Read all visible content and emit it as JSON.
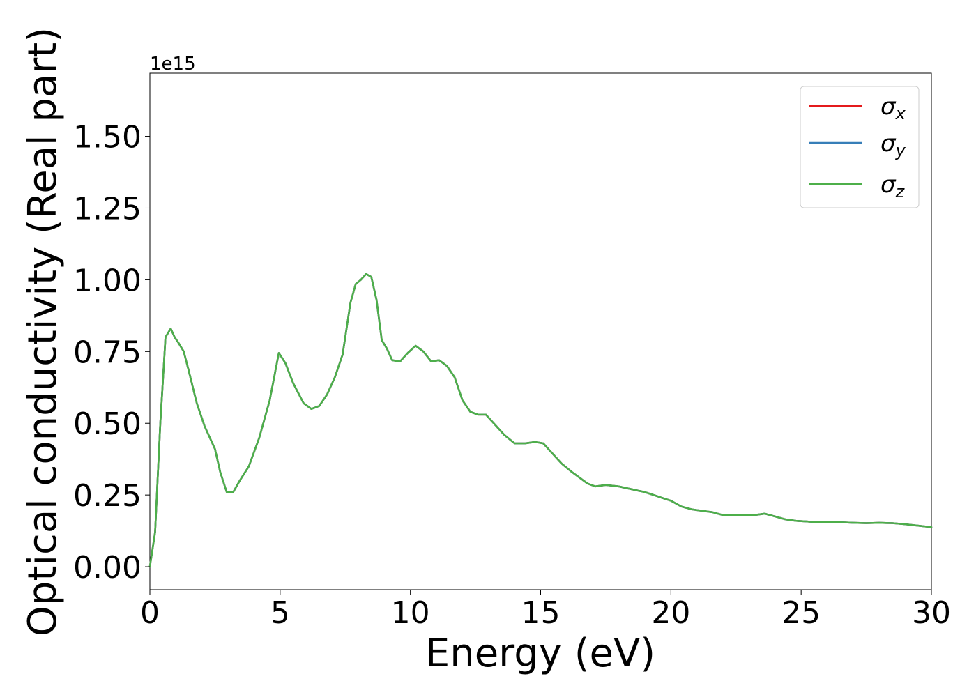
{
  "chart_data": {
    "type": "line",
    "xlabel": "Energy (eV)",
    "ylabel": "Optical conductivity (Real part)",
    "offset_text": "1e15",
    "y_scale_factor": 1000000000000000.0,
    "xlim": [
      0,
      30
    ],
    "ylim": [
      -0.08,
      1.72
    ],
    "xticks": [
      0,
      5,
      10,
      15,
      20,
      25,
      30
    ],
    "xtick_labels": [
      "0",
      "5",
      "10",
      "15",
      "20",
      "25",
      "30"
    ],
    "yticks": [
      0.0,
      0.25,
      0.5,
      0.75,
      1.0,
      1.25,
      1.5
    ],
    "ytick_labels": [
      "0.00",
      "0.25",
      "0.50",
      "0.75",
      "1.00",
      "1.25",
      "1.50"
    ],
    "grid": false,
    "legend_position": "top-right",
    "x": [
      0,
      0.2,
      0.4,
      0.6,
      0.8,
      0.95,
      1.1,
      1.3,
      1.5,
      1.8,
      2.1,
      2.5,
      2.7,
      2.95,
      3.2,
      3.45,
      3.8,
      4.2,
      4.6,
      4.95,
      5.2,
      5.5,
      5.9,
      6.2,
      6.5,
      6.8,
      7.1,
      7.4,
      7.7,
      7.9,
      8.1,
      8.3,
      8.5,
      8.7,
      8.9,
      9.1,
      9.3,
      9.6,
      9.9,
      10.2,
      10.5,
      10.8,
      11.1,
      11.4,
      11.7,
      12.0,
      12.3,
      12.6,
      12.9,
      13.2,
      13.6,
      14.0,
      14.4,
      14.8,
      15.1,
      15.4,
      15.8,
      16.2,
      16.5,
      16.8,
      17.1,
      17.5,
      18.0,
      18.5,
      19.0,
      19.5,
      20.0,
      20.4,
      20.8,
      21.2,
      21.6,
      22.0,
      22.4,
      22.8,
      23.2,
      23.6,
      24.0,
      24.4,
      24.8,
      25.2,
      25.6,
      26.0,
      26.5,
      27.0,
      27.5,
      28.0,
      28.5,
      29.0,
      29.5,
      30.0
    ],
    "series": [
      {
        "name": "σx",
        "color": "#e41a1c",
        "values": [
          0.0,
          0.12,
          0.5,
          0.8,
          0.83,
          0.8,
          0.78,
          0.75,
          0.68,
          0.57,
          0.49,
          0.41,
          0.33,
          0.26,
          0.26,
          0.3,
          0.35,
          0.45,
          0.58,
          0.745,
          0.71,
          0.64,
          0.57,
          0.55,
          0.56,
          0.6,
          0.66,
          0.74,
          0.92,
          0.985,
          1.0,
          1.02,
          1.01,
          0.93,
          0.79,
          0.76,
          0.72,
          0.715,
          0.745,
          0.77,
          0.75,
          0.715,
          0.72,
          0.7,
          0.66,
          0.58,
          0.54,
          0.53,
          0.53,
          0.5,
          0.46,
          0.43,
          0.43,
          0.435,
          0.43,
          0.4,
          0.36,
          0.33,
          0.31,
          0.29,
          0.28,
          0.285,
          0.28,
          0.27,
          0.26,
          0.245,
          0.23,
          0.21,
          0.2,
          0.195,
          0.19,
          0.18,
          0.18,
          0.18,
          0.18,
          0.185,
          0.175,
          0.165,
          0.16,
          0.158,
          0.155,
          0.155,
          0.155,
          0.153,
          0.152,
          0.153,
          0.152,
          0.148,
          0.143,
          0.138
        ]
      },
      {
        "name": "σy",
        "color": "#377eb8",
        "values": [
          0.0,
          0.12,
          0.5,
          0.8,
          0.83,
          0.8,
          0.78,
          0.75,
          0.68,
          0.57,
          0.49,
          0.41,
          0.33,
          0.26,
          0.26,
          0.3,
          0.35,
          0.45,
          0.58,
          0.745,
          0.71,
          0.64,
          0.57,
          0.55,
          0.56,
          0.6,
          0.66,
          0.74,
          0.92,
          0.985,
          1.0,
          1.02,
          1.01,
          0.93,
          0.79,
          0.76,
          0.72,
          0.715,
          0.745,
          0.77,
          0.75,
          0.715,
          0.72,
          0.7,
          0.66,
          0.58,
          0.54,
          0.53,
          0.53,
          0.5,
          0.46,
          0.43,
          0.43,
          0.435,
          0.43,
          0.4,
          0.36,
          0.33,
          0.31,
          0.29,
          0.28,
          0.285,
          0.28,
          0.27,
          0.26,
          0.245,
          0.23,
          0.21,
          0.2,
          0.195,
          0.19,
          0.18,
          0.18,
          0.18,
          0.18,
          0.185,
          0.175,
          0.165,
          0.16,
          0.158,
          0.155,
          0.155,
          0.155,
          0.153,
          0.152,
          0.153,
          0.152,
          0.148,
          0.143,
          0.138
        ]
      },
      {
        "name": "σz",
        "color": "#4daf4a",
        "values": [
          0.0,
          0.12,
          0.5,
          0.8,
          0.83,
          0.8,
          0.78,
          0.75,
          0.68,
          0.57,
          0.49,
          0.41,
          0.33,
          0.26,
          0.26,
          0.3,
          0.35,
          0.45,
          0.58,
          0.745,
          0.71,
          0.64,
          0.57,
          0.55,
          0.56,
          0.6,
          0.66,
          0.74,
          0.92,
          0.985,
          1.0,
          1.02,
          1.01,
          0.93,
          0.79,
          0.76,
          0.72,
          0.715,
          0.745,
          0.77,
          0.75,
          0.715,
          0.72,
          0.7,
          0.66,
          0.58,
          0.54,
          0.53,
          0.53,
          0.5,
          0.46,
          0.43,
          0.43,
          0.435,
          0.43,
          0.4,
          0.36,
          0.33,
          0.31,
          0.29,
          0.28,
          0.285,
          0.28,
          0.27,
          0.26,
          0.245,
          0.23,
          0.21,
          0.2,
          0.195,
          0.19,
          0.18,
          0.18,
          0.18,
          0.18,
          0.185,
          0.175,
          0.165,
          0.16,
          0.158,
          0.155,
          0.155,
          0.155,
          0.153,
          0.152,
          0.153,
          0.152,
          0.148,
          0.143,
          0.138
        ]
      }
    ],
    "legend": [
      {
        "label_base": "σ",
        "label_sub": "x",
        "color": "#e41a1c"
      },
      {
        "label_base": "σ",
        "label_sub": "y",
        "color": "#377eb8"
      },
      {
        "label_base": "σ",
        "label_sub": "z",
        "color": "#4daf4a"
      }
    ]
  }
}
